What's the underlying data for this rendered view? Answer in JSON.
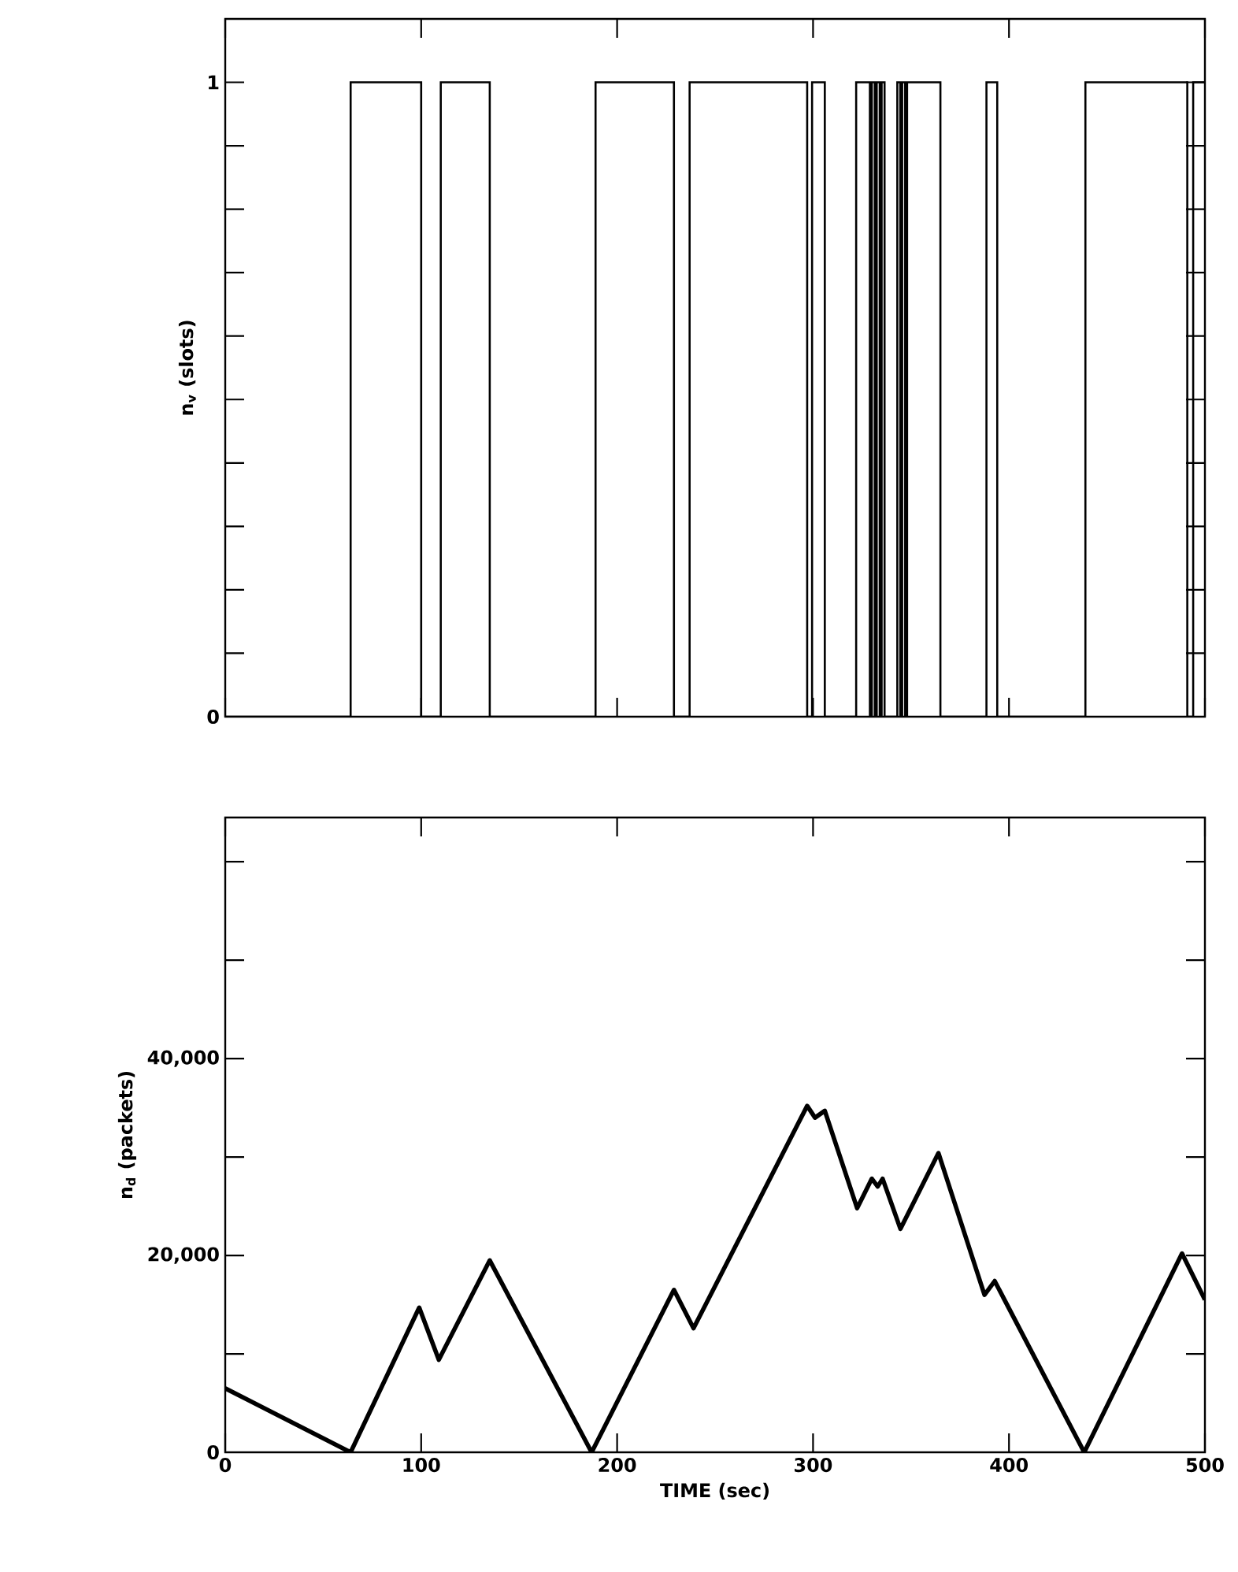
{
  "chart_data": [
    {
      "type": "step",
      "ylabel": "n$_{v}$ (slots)",
      "color": "#000000",
      "x": [
        0,
        64,
        100,
        110,
        135,
        189,
        229,
        237,
        297,
        299.5,
        306,
        322,
        329,
        330,
        331.5,
        332.5,
        334,
        335,
        336.5,
        343,
        344.5,
        345.5,
        347,
        348,
        365,
        388.5,
        394,
        439,
        491,
        494,
        500
      ],
      "values": [
        0,
        1,
        0,
        1,
        0,
        1,
        0,
        1,
        0,
        1,
        0,
        1,
        0,
        1,
        0,
        1,
        0,
        1,
        0,
        1,
        0,
        1,
        0,
        1,
        0,
        1,
        0,
        1,
        0,
        1,
        1
      ],
      "xlim": [
        0,
        500
      ],
      "ylim": [
        0,
        1.1
      ],
      "xticks": [
        0,
        100,
        200,
        300,
        400,
        500
      ],
      "yticks": [
        0,
        {
          "value": 0.1,
          "label": null
        },
        {
          "value": 0.2,
          "label": null
        },
        {
          "value": 0.3,
          "label": null
        },
        {
          "value": 0.4,
          "label": null
        },
        {
          "value": 0.5,
          "label": null
        },
        {
          "value": 0.6,
          "label": null
        },
        {
          "value": 0.7,
          "label": null
        },
        {
          "value": 0.8,
          "label": null
        },
        {
          "value": 0.9,
          "label": null
        },
        1
      ],
      "tick_labels": "y"
    },
    {
      "type": "line",
      "ylabel": "n$_{d}$ (packets)",
      "xlabel": "TIME (sec)",
      "color": "#000000",
      "x": [
        0,
        64,
        99,
        109,
        135,
        187,
        229,
        239,
        297,
        301,
        306,
        322.5,
        330,
        333,
        335.5,
        344.6,
        364,
        387.5,
        392.7,
        438.4,
        488.3,
        500
      ],
      "values": [
        6500,
        0,
        14700,
        9400,
        19500,
        0,
        16500,
        12600,
        35200,
        34000,
        34700,
        24800,
        27800,
        27000,
        27800,
        22700,
        30400,
        16000,
        17400,
        0,
        20200,
        15500
      ],
      "xlim": [
        0,
        500
      ],
      "ylim": [
        0,
        64500
      ],
      "xticks": [
        0,
        100,
        200,
        300,
        400,
        500
      ],
      "yticks": [
        0,
        {
          "value": 10000,
          "label": null
        },
        {
          "value": 20000,
          "label": "20,000"
        },
        {
          "value": 30000,
          "label": null
        },
        {
          "value": 40000,
          "label": "40,000"
        },
        {
          "value": 50000,
          "label": null
        },
        {
          "value": 60000,
          "label": null
        }
      ]
    }
  ]
}
